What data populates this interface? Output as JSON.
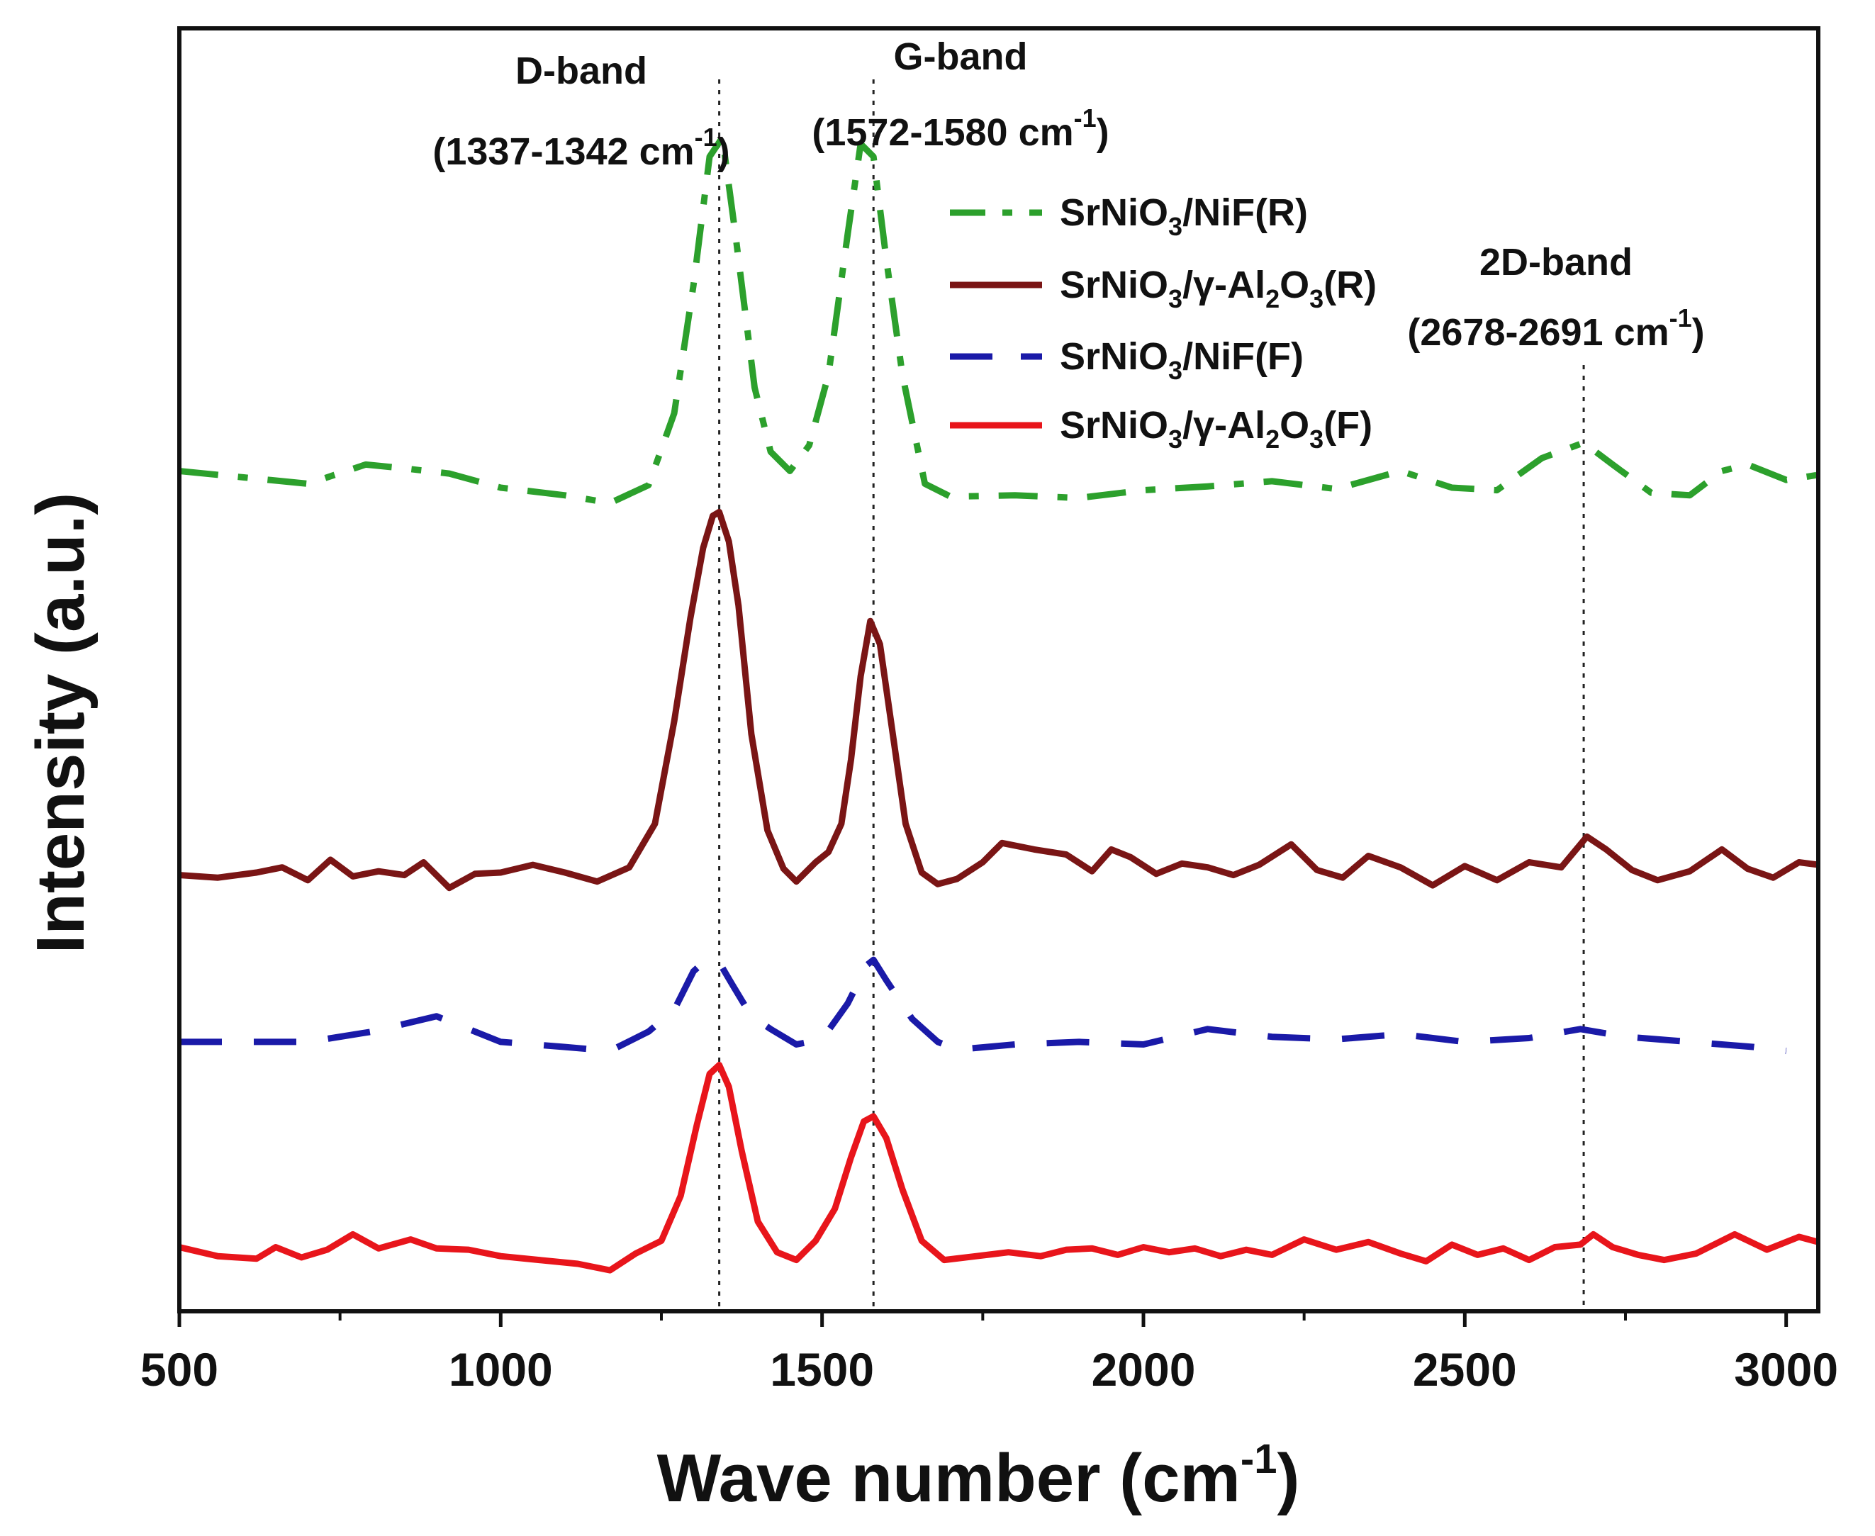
{
  "chart_data": {
    "type": "line",
    "title": "",
    "xlabel": "Wave number (cm",
    "xlabel_sup": "-1",
    "xlabel_close": ")",
    "ylabel": "Intensity (a.u.)",
    "xlim": [
      500,
      3050
    ],
    "ylim": [
      0,
      100
    ],
    "x_ticks": [
      500,
      1000,
      1500,
      2000,
      2500,
      3000
    ],
    "x_tick_labels": [
      "500",
      "1000",
      "1500",
      "2000",
      "2500",
      "3000"
    ],
    "x_minor_ticks": [
      750,
      1250,
      1750,
      2250,
      2750
    ],
    "y_ticks_visible": false,
    "grid": false,
    "legend_position": "top-right",
    "reference_lines": [
      {
        "name": "D-band",
        "x": 1340
      },
      {
        "name": "G-band",
        "x": 1580
      },
      {
        "name": "2D-band",
        "x": 2685
      }
    ],
    "annotations": [
      {
        "name": "d-band",
        "label": "D-band",
        "range_prefix": "(1337-1342 cm",
        "sup": "-1",
        "suffix": ")"
      },
      {
        "name": "g-band",
        "label": "G-band",
        "range_prefix": "(1572-1580 cm",
        "sup": "-1",
        "suffix": ")"
      },
      {
        "name": "2d-band",
        "label": "2D-band",
        "range_prefix": "(2678-2691 cm",
        "sup": "-1",
        "suffix": ")"
      }
    ],
    "series": [
      {
        "name": "SrNiO3/NiF(R)",
        "legend": [
          [
            "SrNiO",
            "n"
          ],
          [
            "3",
            "sub"
          ],
          [
            "/NiF(R)",
            "n"
          ]
        ],
        "color": "#2ca02c",
        "dash": "dashdot",
        "x": [
          500,
          600,
          700,
          790,
          850,
          920,
          1000,
          1100,
          1170,
          1230,
          1270,
          1300,
          1325,
          1345,
          1365,
          1395,
          1420,
          1450,
          1480,
          1510,
          1540,
          1560,
          1580,
          1600,
          1625,
          1660,
          1700,
          1800,
          1900,
          2000,
          2100,
          2200,
          2300,
          2400,
          2480,
          2550,
          2620,
          2685,
          2730,
          2790,
          2850,
          2900,
          2940,
          3000,
          3050
        ],
        "y": [
          65.5,
          65.0,
          64.5,
          66.0,
          65.7,
          65.3,
          64.2,
          63.6,
          63.0,
          64.4,
          70.0,
          80.0,
          90.0,
          91.5,
          84.0,
          72.0,
          67.0,
          65.5,
          67.5,
          73.0,
          84.0,
          91.0,
          90.0,
          82.0,
          73.0,
          64.5,
          63.5,
          63.6,
          63.4,
          64.0,
          64.3,
          64.7,
          64.1,
          65.5,
          64.2,
          64.0,
          66.5,
          67.7,
          66.0,
          63.8,
          63.6,
          65.5,
          66.0,
          64.8,
          65.2
        ]
      },
      {
        "name": "SrNiO3/γ-Al2O3(R)",
        "legend": [
          [
            "SrNiO",
            "n"
          ],
          [
            "3",
            "sub"
          ],
          [
            "/γ-Al",
            "n"
          ],
          [
            "2",
            "sub"
          ],
          [
            "O",
            "n"
          ],
          [
            "3",
            "sub"
          ],
          [
            "(R)",
            "n"
          ]
        ],
        "color": "#7a1515",
        "dash": "solid",
        "x": [
          500,
          560,
          620,
          660,
          700,
          735,
          770,
          810,
          850,
          880,
          920,
          960,
          1000,
          1050,
          1100,
          1150,
          1200,
          1240,
          1270,
          1295,
          1315,
          1330,
          1340,
          1355,
          1370,
          1390,
          1415,
          1440,
          1460,
          1490,
          1510,
          1530,
          1545,
          1560,
          1575,
          1590,
          1610,
          1630,
          1655,
          1680,
          1710,
          1750,
          1780,
          1830,
          1880,
          1920,
          1950,
          1980,
          2020,
          2060,
          2100,
          2140,
          2180,
          2230,
          2270,
          2310,
          2350,
          2400,
          2450,
          2500,
          2550,
          2600,
          2650,
          2690,
          2720,
          2760,
          2800,
          2850,
          2900,
          2940,
          2980,
          3020,
          3050
        ],
        "y": [
          34.0,
          33.8,
          34.2,
          34.6,
          33.6,
          35.2,
          33.9,
          34.3,
          34.0,
          35.0,
          33.0,
          34.1,
          34.2,
          34.8,
          34.2,
          33.5,
          34.6,
          38.0,
          46.0,
          54.0,
          59.5,
          62.0,
          62.3,
          60.0,
          55.0,
          45.0,
          37.5,
          34.5,
          33.5,
          35.0,
          35.8,
          38.0,
          43.0,
          49.5,
          53.8,
          52.0,
          45.0,
          38.0,
          34.2,
          33.3,
          33.7,
          35.0,
          36.5,
          36.0,
          35.6,
          34.3,
          36.0,
          35.4,
          34.1,
          34.9,
          34.6,
          34.0,
          34.8,
          36.4,
          34.4,
          33.8,
          35.5,
          34.6,
          33.2,
          34.7,
          33.6,
          35.0,
          34.6,
          37.0,
          36.0,
          34.4,
          33.6,
          34.3,
          36.0,
          34.5,
          33.8,
          35.0,
          34.8
        ]
      },
      {
        "name": "SrNiO3/NiF(F)",
        "legend": [
          [
            "SrNiO",
            "n"
          ],
          [
            "3",
            "sub"
          ],
          [
            "/NiF(F)",
            "n"
          ]
        ],
        "color": "#1a1aa8",
        "dash": "dash",
        "x": [
          500,
          600,
          700,
          800,
          900,
          1000,
          1100,
          1170,
          1230,
          1270,
          1300,
          1320,
          1340,
          1360,
          1390,
          1420,
          1460,
          1500,
          1540,
          1570,
          1580,
          1600,
          1640,
          1680,
          1710,
          1800,
          1900,
          2000,
          2100,
          2200,
          2300,
          2400,
          2500,
          2600,
          2680,
          2750,
          2850,
          2950,
          3000
        ],
        "y": [
          21.0,
          21.0,
          21.0,
          21.8,
          23.0,
          21.0,
          20.6,
          20.3,
          21.8,
          23.5,
          26.5,
          27.4,
          27.2,
          25.5,
          23.0,
          22.0,
          20.8,
          21.2,
          24.0,
          27.0,
          27.4,
          25.8,
          22.8,
          21.0,
          20.4,
          20.8,
          21.0,
          20.8,
          22.0,
          21.4,
          21.2,
          21.6,
          21.0,
          21.3,
          22.0,
          21.4,
          21.0,
          20.6,
          20.3
        ]
      },
      {
        "name": "SrNiO3/γ-Al2O3(F)",
        "legend": [
          [
            "SrNiO",
            "n"
          ],
          [
            "3",
            "sub"
          ],
          [
            "/γ-Al",
            "n"
          ],
          [
            "2",
            "sub"
          ],
          [
            "O",
            "n"
          ],
          [
            "3",
            "sub"
          ],
          [
            "(F)",
            "n"
          ]
        ],
        "color": "#e8151b",
        "dash": "solid",
        "x": [
          500,
          560,
          620,
          650,
          690,
          730,
          770,
          810,
          860,
          900,
          950,
          1000,
          1060,
          1120,
          1170,
          1210,
          1250,
          1280,
          1305,
          1325,
          1340,
          1355,
          1375,
          1400,
          1430,
          1460,
          1490,
          1520,
          1545,
          1565,
          1580,
          1600,
          1625,
          1655,
          1690,
          1740,
          1790,
          1840,
          1880,
          1920,
          1960,
          2000,
          2040,
          2080,
          2120,
          2160,
          2200,
          2250,
          2300,
          2350,
          2400,
          2440,
          2480,
          2520,
          2560,
          2600,
          2640,
          2680,
          2700,
          2730,
          2770,
          2810,
          2860,
          2920,
          2970,
          3020,
          3050
        ],
        "y": [
          5.0,
          4.3,
          4.1,
          5.0,
          4.2,
          4.8,
          6.0,
          4.9,
          5.6,
          4.9,
          4.8,
          4.3,
          4.0,
          3.7,
          3.2,
          4.5,
          5.5,
          9.0,
          14.5,
          18.5,
          19.2,
          17.5,
          12.5,
          7.0,
          4.6,
          4.0,
          5.5,
          8.0,
          12.0,
          14.8,
          15.2,
          13.5,
          9.5,
          5.5,
          4.0,
          4.3,
          4.6,
          4.3,
          4.8,
          4.9,
          4.4,
          5.0,
          4.6,
          4.9,
          4.3,
          4.8,
          4.4,
          5.6,
          4.8,
          5.4,
          4.5,
          3.9,
          5.2,
          4.4,
          4.9,
          4.0,
          5.0,
          5.2,
          6.0,
          5.0,
          4.4,
          4.0,
          4.5,
          6.0,
          4.8,
          5.8,
          5.4
        ]
      }
    ]
  }
}
